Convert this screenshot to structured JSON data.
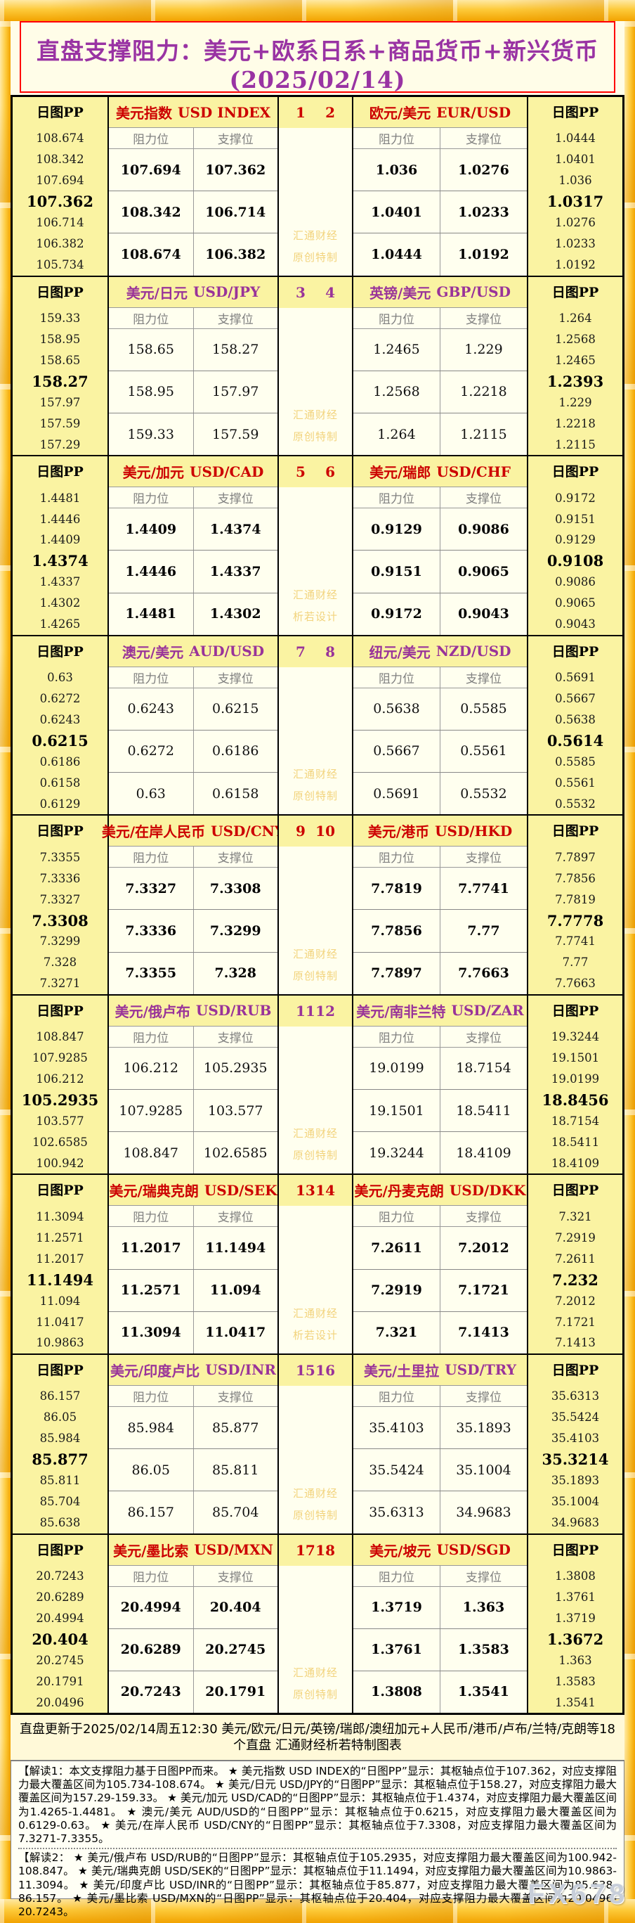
{
  "page": {
    "title": "直盘支撑阻力：美元+欧系日系+商品货币+新兴货币(2025/02/14)",
    "subtitle": "更新于2025/02/14周五12:30 美元/欧元/日元/英镑/瑞郎/澳纽加元+人民币/港币/卢布/兰特/克朗等18个直盘 汇通财经析若特制图表"
  },
  "labels": {
    "pp": "日图PP",
    "resistance": "阻力位",
    "support": "支撑位",
    "watermark_line1": "汇通财经",
    "fx_watermark": "FX678"
  },
  "colors": {
    "red_theme": "#CC0000",
    "purple_theme": "#993399",
    "title_purple": "#9933A3",
    "header_yellow": "#FAF3A2",
    "cell_ivory": "#FFFFEF",
    "watermark_gold": "#F2D37C",
    "frame_gold": "#FDCA3A"
  },
  "blocks": [
    {
      "idxL": "1",
      "idxR": "2",
      "theme": "red",
      "wm2": "原创特制"
    },
    {
      "idxL": "3",
      "idxR": "4",
      "theme": "purple",
      "wm2": "原创特制"
    },
    {
      "idxL": "5",
      "idxR": "6",
      "theme": "red",
      "wm2": "析若设计"
    },
    {
      "idxL": "7",
      "idxR": "8",
      "theme": "purple",
      "wm2": "原创特制"
    },
    {
      "idxL": "9",
      "idxR": "10",
      "theme": "red",
      "wm2": "原创特制"
    },
    {
      "idxL": "11",
      "idxR": "12",
      "theme": "purple",
      "wm2": "原创特制"
    },
    {
      "idxL": "13",
      "idxR": "14",
      "theme": "red",
      "wm2": "析若设计"
    },
    {
      "idxL": "15",
      "idxR": "16",
      "theme": "purple",
      "wm2": "原创特制"
    },
    {
      "idxL": "17",
      "idxR": "18",
      "theme": "red",
      "wm2": "原创特制"
    }
  ],
  "chart_data": {
    "type": "table",
    "title": "直盘支撑阻力：美元+欧系日系+商品货币+新兴货币(2025/02/14)",
    "columns": [
      "阻力位",
      "支撑位"
    ],
    "pp_label": "日图PP",
    "pairs": [
      {
        "cn": "美元指数",
        "en": "USD INDEX",
        "pp": [
          "108.674",
          "108.342",
          "107.694",
          "107.362",
          "106.714",
          "106.382",
          "105.734"
        ],
        "rows": [
          [
            "107.694",
            "107.362"
          ],
          [
            "108.342",
            "106.714"
          ],
          [
            "108.674",
            "106.382"
          ]
        ]
      },
      {
        "cn": "欧元/美元",
        "en": "EUR/USD",
        "pp": [
          "1.0444",
          "1.0401",
          "1.036",
          "1.0317",
          "1.0276",
          "1.0233",
          "1.0192"
        ],
        "rows": [
          [
            "1.036",
            "1.0276"
          ],
          [
            "1.0401",
            "1.0233"
          ],
          [
            "1.0444",
            "1.0192"
          ]
        ]
      },
      {
        "cn": "美元/日元",
        "en": "USD/JPY",
        "pp": [
          "159.33",
          "158.95",
          "158.65",
          "158.27",
          "157.97",
          "157.59",
          "157.29"
        ],
        "rows": [
          [
            "158.65",
            "158.27"
          ],
          [
            "158.95",
            "157.97"
          ],
          [
            "159.33",
            "157.59"
          ]
        ]
      },
      {
        "cn": "英镑/美元",
        "en": "GBP/USD",
        "pp": [
          "1.264",
          "1.2568",
          "1.2465",
          "1.2393",
          "1.229",
          "1.2218",
          "1.2115"
        ],
        "rows": [
          [
            "1.2465",
            "1.229"
          ],
          [
            "1.2568",
            "1.2218"
          ],
          [
            "1.264",
            "1.2115"
          ]
        ]
      },
      {
        "cn": "美元/加元",
        "en": "USD/CAD",
        "pp": [
          "1.4481",
          "1.4446",
          "1.4409",
          "1.4374",
          "1.4337",
          "1.4302",
          "1.4265"
        ],
        "rows": [
          [
            "1.4409",
            "1.4374"
          ],
          [
            "1.4446",
            "1.4337"
          ],
          [
            "1.4481",
            "1.4302"
          ]
        ]
      },
      {
        "cn": "美元/瑞郎",
        "en": "USD/CHF",
        "pp": [
          "0.9172",
          "0.9151",
          "0.9129",
          "0.9108",
          "0.9086",
          "0.9065",
          "0.9043"
        ],
        "rows": [
          [
            "0.9129",
            "0.9086"
          ],
          [
            "0.9151",
            "0.9065"
          ],
          [
            "0.9172",
            "0.9043"
          ]
        ]
      },
      {
        "cn": "澳元/美元",
        "en": "AUD/USD",
        "pp": [
          "0.63",
          "0.6272",
          "0.6243",
          "0.6215",
          "0.6186",
          "0.6158",
          "0.6129"
        ],
        "rows": [
          [
            "0.6243",
            "0.6215"
          ],
          [
            "0.6272",
            "0.6186"
          ],
          [
            "0.63",
            "0.6158"
          ]
        ]
      },
      {
        "cn": "纽元/美元",
        "en": "NZD/USD",
        "pp": [
          "0.5691",
          "0.5667",
          "0.5638",
          "0.5614",
          "0.5585",
          "0.5561",
          "0.5532"
        ],
        "rows": [
          [
            "0.5638",
            "0.5585"
          ],
          [
            "0.5667",
            "0.5561"
          ],
          [
            "0.5691",
            "0.5532"
          ]
        ]
      },
      {
        "cn": "美元/在岸人民币",
        "en": "USD/CNY",
        "pp": [
          "7.3355",
          "7.3336",
          "7.3327",
          "7.3308",
          "7.3299",
          "7.328",
          "7.3271"
        ],
        "rows": [
          [
            "7.3327",
            "7.3308"
          ],
          [
            "7.3336",
            "7.3299"
          ],
          [
            "7.3355",
            "7.328"
          ]
        ]
      },
      {
        "cn": "美元/港币",
        "en": "USD/HKD",
        "pp": [
          "7.7897",
          "7.7856",
          "7.7819",
          "7.7778",
          "7.7741",
          "7.77",
          "7.7663"
        ],
        "rows": [
          [
            "7.7819",
            "7.7741"
          ],
          [
            "7.7856",
            "7.77"
          ],
          [
            "7.7897",
            "7.7663"
          ]
        ]
      },
      {
        "cn": "美元/俄卢布",
        "en": "USD/RUB",
        "pp": [
          "108.847",
          "107.9285",
          "106.212",
          "105.2935",
          "103.577",
          "102.6585",
          "100.942"
        ],
        "rows": [
          [
            "106.212",
            "105.2935"
          ],
          [
            "107.9285",
            "103.577"
          ],
          [
            "108.847",
            "102.6585"
          ]
        ]
      },
      {
        "cn": "美元/南非兰特",
        "en": "USD/ZAR",
        "pp": [
          "19.3244",
          "19.1501",
          "19.0199",
          "18.8456",
          "18.7154",
          "18.5411",
          "18.4109"
        ],
        "rows": [
          [
            "19.0199",
            "18.7154"
          ],
          [
            "19.1501",
            "18.5411"
          ],
          [
            "19.3244",
            "18.4109"
          ]
        ]
      },
      {
        "cn": "美元/瑞典克朗",
        "en": "USD/SEK",
        "pp": [
          "11.3094",
          "11.2571",
          "11.2017",
          "11.1494",
          "11.094",
          "11.0417",
          "10.9863"
        ],
        "rows": [
          [
            "11.2017",
            "11.1494"
          ],
          [
            "11.2571",
            "11.094"
          ],
          [
            "11.3094",
            "11.0417"
          ]
        ]
      },
      {
        "cn": "美元/丹麦克朗",
        "en": "USD/DKK",
        "pp": [
          "7.321",
          "7.2919",
          "7.2611",
          "7.232",
          "7.2012",
          "7.1721",
          "7.1413"
        ],
        "rows": [
          [
            "7.2611",
            "7.2012"
          ],
          [
            "7.2919",
            "7.1721"
          ],
          [
            "7.321",
            "7.1413"
          ]
        ]
      },
      {
        "cn": "美元/印度卢比",
        "en": "USD/INR",
        "pp": [
          "86.157",
          "86.05",
          "85.984",
          "85.877",
          "85.811",
          "85.704",
          "85.638"
        ],
        "rows": [
          [
            "85.984",
            "85.877"
          ],
          [
            "86.05",
            "85.811"
          ],
          [
            "86.157",
            "85.704"
          ]
        ]
      },
      {
        "cn": "美元/土里拉",
        "en": "USD/TRY",
        "pp": [
          "35.6313",
          "35.5424",
          "35.4103",
          "35.3214",
          "35.1893",
          "35.1004",
          "34.9683"
        ],
        "rows": [
          [
            "35.4103",
            "35.1893"
          ],
          [
            "35.5424",
            "35.1004"
          ],
          [
            "35.6313",
            "34.9683"
          ]
        ]
      },
      {
        "cn": "美元/墨比索",
        "en": "USD/MXN",
        "pp": [
          "20.7243",
          "20.6289",
          "20.4994",
          "20.404",
          "20.2745",
          "20.1791",
          "20.0496"
        ],
        "rows": [
          [
            "20.4994",
            "20.404"
          ],
          [
            "20.6289",
            "20.2745"
          ],
          [
            "20.7243",
            "20.1791"
          ]
        ]
      },
      {
        "cn": "美元/坡元",
        "en": "USD/SGD",
        "pp": [
          "1.3808",
          "1.3761",
          "1.3719",
          "1.3672",
          "1.363",
          "1.3583",
          "1.3541"
        ],
        "rows": [
          [
            "1.3719",
            "1.363"
          ],
          [
            "1.3761",
            "1.3583"
          ],
          [
            "1.3808",
            "1.3541"
          ]
        ]
      }
    ]
  },
  "footer": {
    "update_line": "直盘更新于2025/02/14周五12:30 美元/欧元/日元/英镑/瑞郎/澳纽加元+人民币/港币/卢布/兰特/克朗等18个直盘 汇通财经析若特制图表",
    "note1": "【解读1：本文支撑阻力基于日图PP而来。 ★ 美元指数 USD INDEX的“日图PP”显示：其枢轴点位于107.362，对应支撑阻力最大覆盖区间为105.734-108.674。 ★ 美元/日元 USD/JPY的“日图PP”显示：其枢轴点位于158.27，对应支撑阻力最大覆盖区间为157.29-159.33。 ★ 美元/加元 USD/CAD的“日图PP”显示：其枢轴点位于1.4374，对应支撑阻力最大覆盖区间为1.4265-1.4481。 ★ 澳元/美元 AUD/USD的“日图PP”显示：其枢轴点位于0.6215，对应支撑阻力最大覆盖区间为0.6129-0.63。 ★ 美元/在岸人民币 USD/CNY的“日图PP”显示：其枢轴点位于7.3308，对应支撑阻力最大覆盖区间为7.3271-7.3355。",
    "note2": "【解读2： ★ 美元/俄卢布 USD/RUB的“日图PP”显示：其枢轴点位于105.2935，对应支撑阻力最大覆盖区间为100.942-108.847。 ★ 美元/瑞典克朗 USD/SEK的“日图PP”显示：其枢轴点位于11.1494，对应支撑阻力最大覆盖区间为10.9863-11.3094。 ★ 美元/印度卢比 USD/INR的“日图PP”显示：其枢轴点位于85.877，对应支撑阻力最大覆盖区间为85.638-86.157。 ★ 美元/墨比索 USD/MXN的“日图PP”显示：其枢轴点位于20.404，对应支撑阻力最大覆盖区间为20.0496-20.7243。"
  }
}
